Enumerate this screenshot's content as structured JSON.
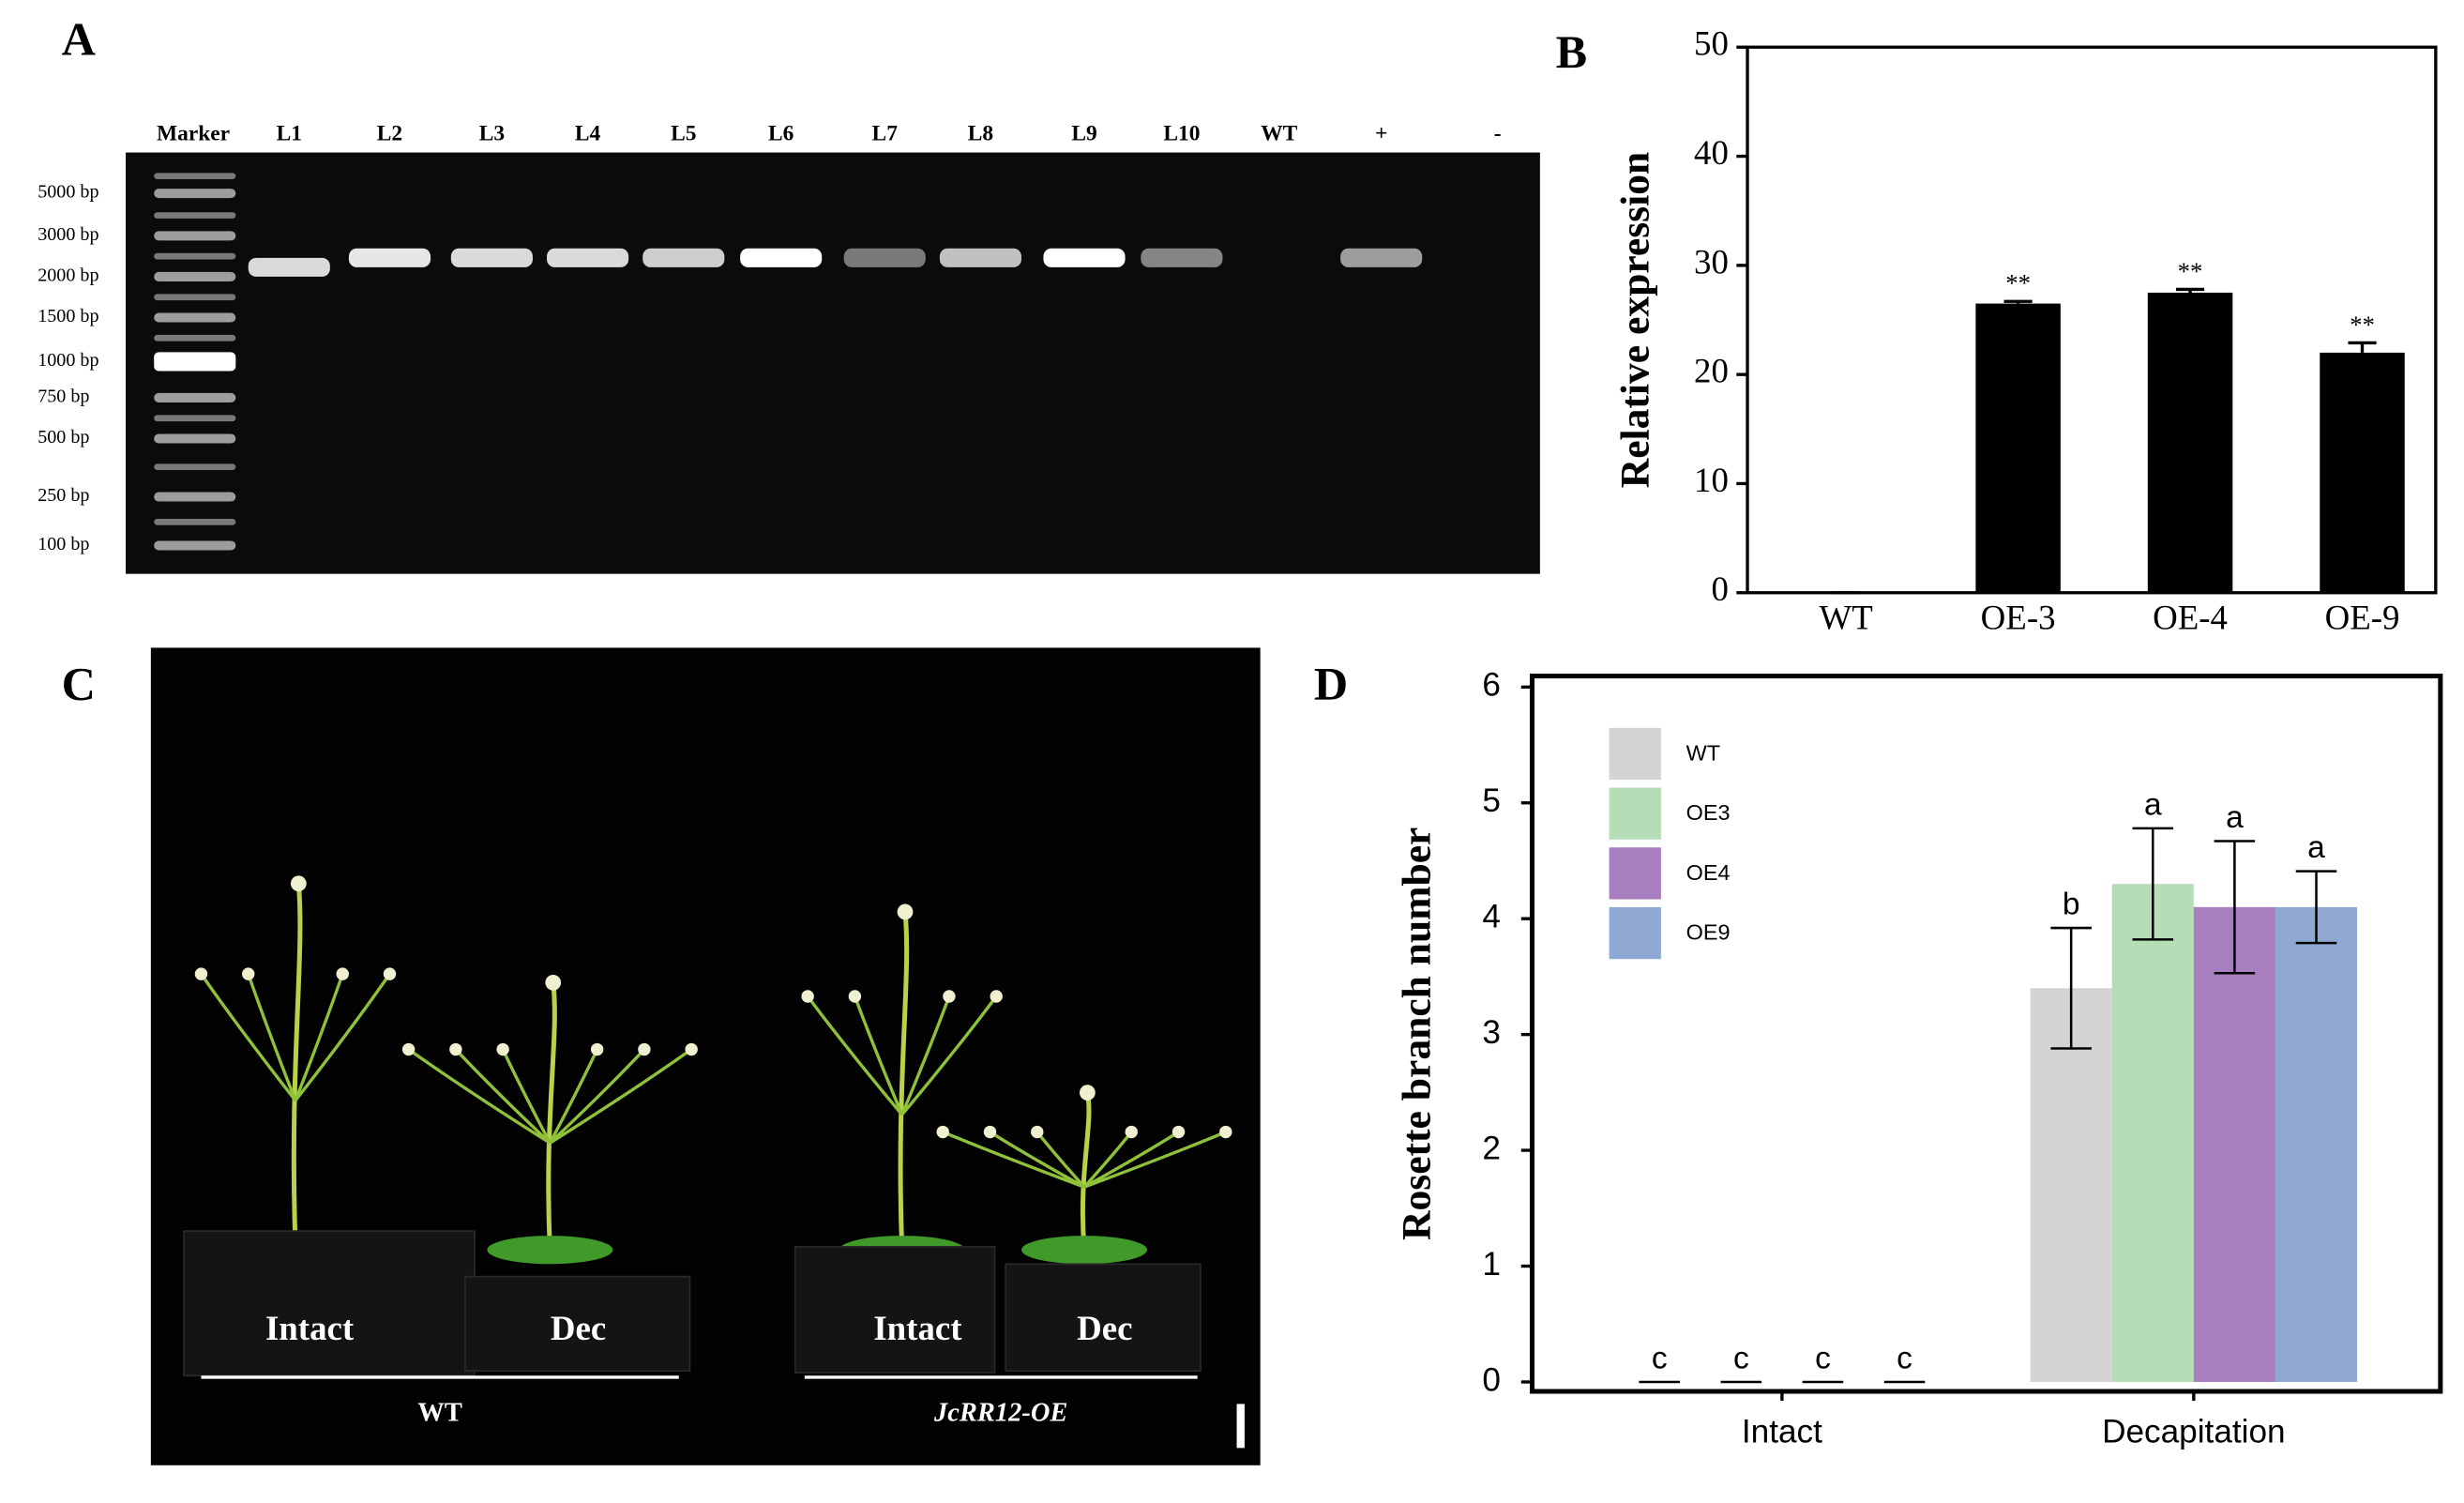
{
  "panel_labels": [
    "A",
    "B",
    "C",
    "D"
  ],
  "gel": {
    "lanes": [
      "Marker",
      "L1",
      "L2",
      "L3",
      "L4",
      "L5",
      "L6",
      "L7",
      "L8",
      "L9",
      "L10",
      "WT",
      "+",
      "-"
    ],
    "marker_sizes": [
      "5000 bp",
      "3000 bp",
      "2000 bp",
      "1500 bp",
      "1000 bp",
      "750 bp",
      "500 bp",
      "250 bp",
      "100 bp"
    ]
  },
  "photo": {
    "pot_labels": [
      "Intact",
      "Dec",
      "Intact",
      "Dec"
    ],
    "group_labels": [
      "WT",
      "JcRR12-OE"
    ]
  },
  "chart_data": [
    {
      "type": "bar",
      "ylabel": "Relative expression",
      "categories": [
        "WT",
        "OE-3",
        "OE-4",
        "OE-9"
      ],
      "values": [
        0,
        26.5,
        27.5,
        22
      ],
      "errors": [
        0,
        0.2,
        0.3,
        0.9
      ],
      "significance": [
        null,
        "**",
        "**",
        "**"
      ],
      "color": "#000000",
      "ylim": [
        0,
        50
      ],
      "yticks": [
        0,
        10,
        20,
        30,
        40,
        50
      ]
    },
    {
      "type": "grouped_bar",
      "ylabel": "Rosette branch number",
      "categories": [
        "Intact",
        "Decapitation"
      ],
      "series": [
        {
          "name": "WT",
          "color": "#d4d4d4",
          "values": [
            0,
            3.4
          ],
          "errors": [
            0,
            0.52
          ],
          "letters": [
            "c",
            "b"
          ]
        },
        {
          "name": "OE3",
          "color": "#b6deb6",
          "values": [
            0,
            4.3
          ],
          "errors": [
            0,
            0.48
          ],
          "letters": [
            "c",
            "a"
          ]
        },
        {
          "name": "OE4",
          "color": "#a77fc1",
          "values": [
            0,
            4.1
          ],
          "errors": [
            0,
            0.57
          ],
          "letters": [
            "c",
            "a"
          ]
        },
        {
          "name": "OE9",
          "color": "#8fa9d4",
          "values": [
            0,
            4.1
          ],
          "errors": [
            0,
            0.31
          ],
          "letters": [
            "c",
            "a"
          ]
        }
      ],
      "ylim": [
        0,
        6
      ],
      "yticks": [
        0,
        1,
        2,
        3,
        4,
        5,
        6
      ],
      "legend": "upper left"
    }
  ]
}
